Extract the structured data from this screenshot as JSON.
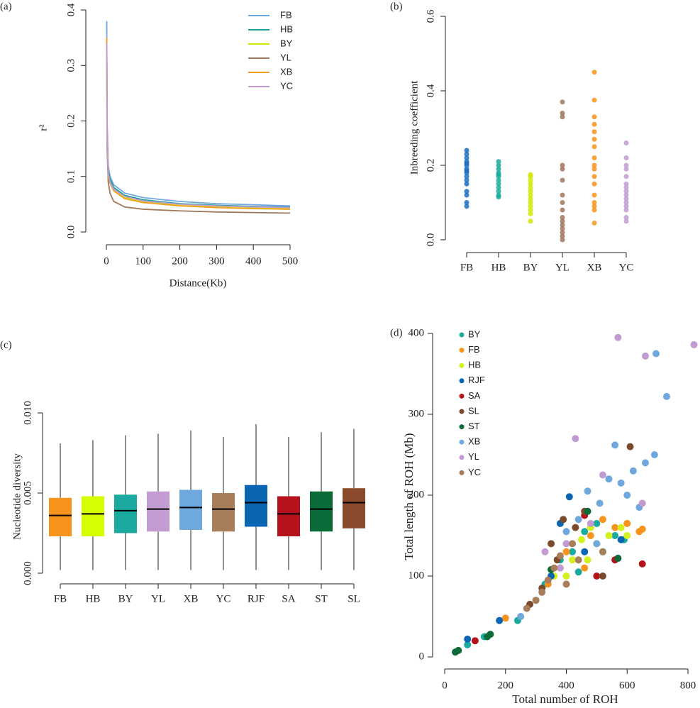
{
  "chart_data": [
    {
      "type": "line",
      "panel_label": "(a)",
      "xlabel": "Distance(Kb)",
      "ylabel": "r²",
      "x": [
        1,
        2,
        5,
        10,
        20,
        50,
        100,
        200,
        300,
        400,
        500
      ],
      "series": [
        {
          "name": "FB",
          "color": "#6fa8dc",
          "values": [
            0.38,
            0.2,
            0.12,
            0.1,
            0.085,
            0.07,
            0.062,
            0.055,
            0.051,
            0.049,
            0.047
          ]
        },
        {
          "name": "HB",
          "color": "#1a9e9a",
          "values": [
            0.34,
            0.18,
            0.11,
            0.095,
            0.08,
            0.066,
            0.058,
            0.051,
            0.048,
            0.046,
            0.045
          ]
        },
        {
          "name": "BY",
          "color": "#d4e800",
          "values": [
            0.34,
            0.17,
            0.1,
            0.088,
            0.075,
            0.062,
            0.054,
            0.048,
            0.045,
            0.043,
            0.042
          ]
        },
        {
          "name": "YL",
          "color": "#a0785a",
          "values": [
            0.34,
            0.15,
            0.09,
            0.07,
            0.055,
            0.045,
            0.041,
            0.038,
            0.036,
            0.035,
            0.034
          ]
        },
        {
          "name": "XB",
          "color": "#f0a020",
          "values": [
            0.35,
            0.17,
            0.1,
            0.088,
            0.074,
            0.06,
            0.053,
            0.047,
            0.044,
            0.042,
            0.041
          ]
        },
        {
          "name": "YC",
          "color": "#c39bd3",
          "values": [
            0.34,
            0.18,
            0.105,
            0.09,
            0.077,
            0.064,
            0.056,
            0.05,
            0.047,
            0.045,
            0.044
          ]
        }
      ],
      "xlim": [
        0,
        500
      ],
      "xticks": [
        0,
        100,
        200,
        300,
        400,
        500
      ],
      "ylim": [
        0,
        0.4
      ],
      "yticks": [
        {
          "value": 0,
          "label": "0.0"
        },
        {
          "value": 0.1,
          "label": "0.1"
        },
        {
          "value": 0.2,
          "label": "0.2"
        },
        {
          "value": 0.3,
          "label": "0.3"
        },
        {
          "value": 0.4,
          "label": "0.4"
        }
      ]
    },
    {
      "type": "strip",
      "panel_label": "(b)",
      "ylabel": "Inbreeding coefficient",
      "categories": [
        "FB",
        "HB",
        "BY",
        "YL",
        "XB",
        "YC"
      ],
      "colors": [
        "#1a6fc2",
        "#1aaaa0",
        "#d4e800",
        "#a0785a",
        "#f7941d",
        "#c39bd3"
      ],
      "values": [
        [
          0.09,
          0.1,
          0.12,
          0.13,
          0.15,
          0.16,
          0.17,
          0.18,
          0.185,
          0.19,
          0.2,
          0.205,
          0.21,
          0.22,
          0.23,
          0.24
        ],
        [
          0.115,
          0.12,
          0.13,
          0.14,
          0.15,
          0.16,
          0.17,
          0.175,
          0.18,
          0.19,
          0.2,
          0.21
        ],
        [
          0.05,
          0.07,
          0.08,
          0.09,
          0.1,
          0.11,
          0.12,
          0.13,
          0.14,
          0.15,
          0.16,
          0.17,
          0.175
        ],
        [
          0.0,
          0.01,
          0.02,
          0.03,
          0.04,
          0.05,
          0.06,
          0.08,
          0.1,
          0.12,
          0.16,
          0.19,
          0.2,
          0.33,
          0.34,
          0.37
        ],
        [
          0.045,
          0.08,
          0.09,
          0.1,
          0.12,
          0.15,
          0.17,
          0.19,
          0.2,
          0.22,
          0.25,
          0.27,
          0.29,
          0.31,
          0.33,
          0.375,
          0.45
        ],
        [
          0.05,
          0.06,
          0.08,
          0.09,
          0.1,
          0.11,
          0.12,
          0.13,
          0.14,
          0.15,
          0.17,
          0.19,
          0.2,
          0.22,
          0.26
        ]
      ],
      "ylim": [
        0,
        0.6
      ],
      "yticks": [
        {
          "value": 0,
          "label": "0.0"
        },
        {
          "value": 0.2,
          "label": "0.2"
        },
        {
          "value": 0.4,
          "label": "0.4"
        },
        {
          "value": 0.6,
          "label": "0.6"
        }
      ]
    },
    {
      "type": "box",
      "panel_label": "(c)",
      "ylabel": "Nucleotide diversity",
      "categories": [
        "FB",
        "HB",
        "BY",
        "YL",
        "XB",
        "YC",
        "RJF",
        "SA",
        "ST",
        "SL"
      ],
      "colors": [
        "#f7941d",
        "#d4ff00",
        "#1aaaa0",
        "#c39bd3",
        "#6fa8dc",
        "#a87d5a",
        "#0a66b3",
        "#b5121b",
        "#0a6b38",
        "#8b4a2b"
      ],
      "min": [
        0.0002,
        0.0002,
        0.0002,
        0.0002,
        0.0002,
        0.0002,
        0.0002,
        0.0002,
        0.0002,
        0.0002
      ],
      "q1": [
        0.0023,
        0.0023,
        0.0025,
        0.0026,
        0.0027,
        0.0026,
        0.0029,
        0.0023,
        0.0026,
        0.0028
      ],
      "median": [
        0.0036,
        0.0037,
        0.0039,
        0.004,
        0.0041,
        0.004,
        0.0044,
        0.0037,
        0.004,
        0.0044
      ],
      "q3": [
        0.0047,
        0.0048,
        0.0049,
        0.0051,
        0.0052,
        0.005,
        0.0055,
        0.0048,
        0.0051,
        0.0053
      ],
      "max": [
        0.0081,
        0.0083,
        0.0086,
        0.0087,
        0.0089,
        0.0085,
        0.0093,
        0.0085,
        0.0088,
        0.009
      ],
      "ylim": [
        0,
        0.01
      ],
      "yticks": [
        {
          "value": 0,
          "label": "0.000"
        },
        {
          "value": 0.005,
          "label": "0.005"
        },
        {
          "value": 0.01,
          "label": "0.010"
        }
      ]
    },
    {
      "type": "scatter",
      "panel_label": "(d)",
      "xlabel": "Total number of ROH",
      "ylabel": "Total length of ROH (Mb)",
      "series": [
        {
          "name": "BY",
          "color": "#1aaaa0",
          "x": [
            75,
            130,
            240,
            300,
            330,
            380,
            420,
            460,
            500,
            520,
            560,
            590,
            440
          ],
          "values": [
            15,
            25,
            45,
            70,
            90,
            120,
            130,
            155,
            165,
            130,
            150,
            145,
            105
          ]
        },
        {
          "name": "FB",
          "color": "#f7941d",
          "x": [
            200,
            340,
            400,
            480,
            520,
            560,
            600,
            640,
            650,
            460
          ],
          "values": [
            48,
            90,
            130,
            150,
            170,
            160,
            165,
            155,
            158,
            110
          ]
        },
        {
          "name": "HB",
          "color": "#d4f01e",
          "x": [
            380,
            400,
            420,
            450,
            480,
            500,
            540,
            580,
            600,
            360,
            470
          ],
          "values": [
            110,
            100,
            120,
            145,
            160,
            140,
            150,
            160,
            150,
            100,
            120
          ]
        },
        {
          "name": "RJF",
          "color": "#0a66b3",
          "x": [
            75,
            180,
            350,
            410,
            460,
            580,
            380
          ],
          "values": [
            22,
            45,
            100,
            198,
            130,
            145,
            165
          ]
        },
        {
          "name": "SA",
          "color": "#b5121b",
          "x": [
            100,
            500,
            560,
            650,
            460
          ],
          "values": [
            20,
            100,
            120,
            115,
            175
          ]
        },
        {
          "name": "SL",
          "color": "#7b4a2b",
          "x": [
            280,
            320,
            350,
            390,
            430,
            460,
            520,
            610,
            370
          ],
          "values": [
            65,
            85,
            140,
            170,
            160,
            180,
            100,
            260,
            120
          ]
        },
        {
          "name": "ST",
          "color": "#0a6b38",
          "x": [
            35,
            45,
            140,
            150,
            350,
            470,
            570
          ],
          "values": [
            6,
            8,
            25,
            28,
            108,
            180,
            122
          ]
        },
        {
          "name": "XB",
          "color": "#6fa8dc",
          "x": [
            250,
            400,
            440,
            470,
            510,
            540,
            560,
            580,
            600,
            620,
            640,
            660,
            690,
            695,
            730,
            500
          ],
          "values": [
            50,
            155,
            170,
            205,
            190,
            220,
            262,
            215,
            200,
            230,
            185,
            240,
            250,
            375,
            322,
            140
          ]
        },
        {
          "name": "YL",
          "color": "#c39bd3",
          "x": [
            330,
            380,
            430,
            480,
            520,
            570,
            650,
            660,
            820,
            400
          ],
          "values": [
            130,
            110,
            270,
            165,
            225,
            395,
            190,
            372,
            386,
            140
          ]
        },
        {
          "name": "YC",
          "color": "#a87d5a",
          "x": [
            270,
            300,
            320,
            340,
            360,
            380,
            400,
            420,
            440,
            520
          ],
          "values": [
            60,
            70,
            80,
            95,
            110,
            125,
            90,
            140,
            120,
            130
          ]
        }
      ],
      "xlim": [
        0,
        800
      ],
      "xticks": [
        0,
        200,
        400,
        600,
        800
      ],
      "ylim": [
        0,
        400
      ],
      "yticks": [
        0,
        100,
        200,
        300,
        400
      ]
    }
  ]
}
